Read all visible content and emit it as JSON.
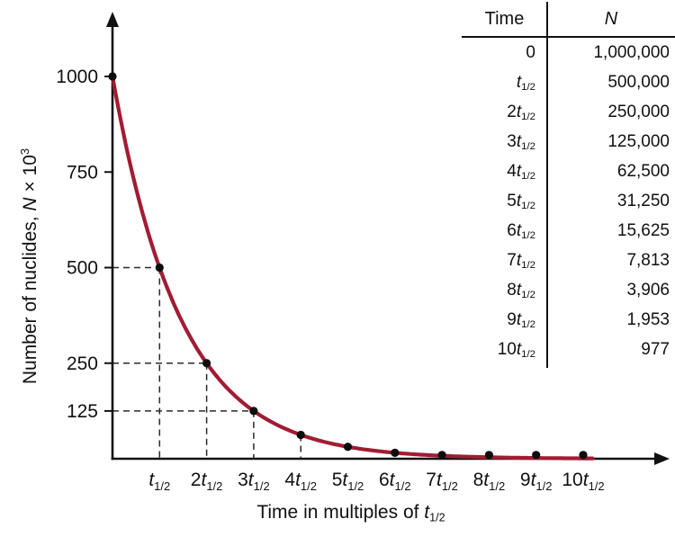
{
  "colors": {
    "background": "#ffffff",
    "curve": "#a11c33",
    "point": "#0d0d0d",
    "axis": "#111111",
    "dash": "#2b2b2b",
    "text": "#111111"
  },
  "chart_data": {
    "type": "line",
    "title": "",
    "xlabel": "Time in multiples of t_{1/2}",
    "ylabel": "Number of nuclides, N × 10^3",
    "x": [
      0,
      1,
      2,
      3,
      4,
      5,
      6,
      7,
      8,
      9,
      10
    ],
    "y": [
      1000,
      500,
      250,
      125,
      62.5,
      31.25,
      15.625,
      7.8125,
      3.90625,
      1.953125,
      0.9765625
    ],
    "ylim": [
      0,
      1040
    ],
    "y_ticks": [
      1000,
      750,
      500,
      250,
      125
    ],
    "x_tick_coefs": [
      "",
      "2",
      "3",
      "4",
      "5",
      "6",
      "7",
      "8",
      "9",
      "10"
    ],
    "tick_symbol": "t",
    "tick_subscript": "1/2",
    "grid": false,
    "legend": false,
    "dashed_guides": [
      {
        "x": 1,
        "y": 500,
        "horizontal": true,
        "vertical": true
      },
      {
        "x": 2,
        "y": 250,
        "horizontal": true,
        "vertical": true
      },
      {
        "x": 3,
        "y": 125,
        "horizontal": true,
        "vertical": true
      },
      {
        "x": 4,
        "y": 62.5,
        "horizontal": false,
        "vertical": true
      }
    ]
  },
  "labels": {
    "xlabel_prefix": "Time in multiples of ",
    "xlabel_var": "t",
    "xlabel_sub": "1/2",
    "ylabel_prefix": "Number of nuclides, ",
    "ylabel_var": "N",
    "ylabel_mid": " × 10",
    "ylabel_sup": "3"
  },
  "table": {
    "time_header": "Time",
    "n_header": "N",
    "sub": "1/2",
    "rows": [
      {
        "coef": "0",
        "has_t": false,
        "n": "1,000,000"
      },
      {
        "coef": "",
        "has_t": true,
        "n": "500,000"
      },
      {
        "coef": "2",
        "has_t": true,
        "n": "250,000"
      },
      {
        "coef": "3",
        "has_t": true,
        "n": "125,000"
      },
      {
        "coef": "4",
        "has_t": true,
        "n": "62,500"
      },
      {
        "coef": "5",
        "has_t": true,
        "n": "31,250"
      },
      {
        "coef": "6",
        "has_t": true,
        "n": "15,625"
      },
      {
        "coef": "7",
        "has_t": true,
        "n": "7,813"
      },
      {
        "coef": "8",
        "has_t": true,
        "n": "3,906"
      },
      {
        "coef": "9",
        "has_t": true,
        "n": "1,953"
      },
      {
        "coef": "10",
        "has_t": true,
        "n": "977"
      }
    ]
  }
}
